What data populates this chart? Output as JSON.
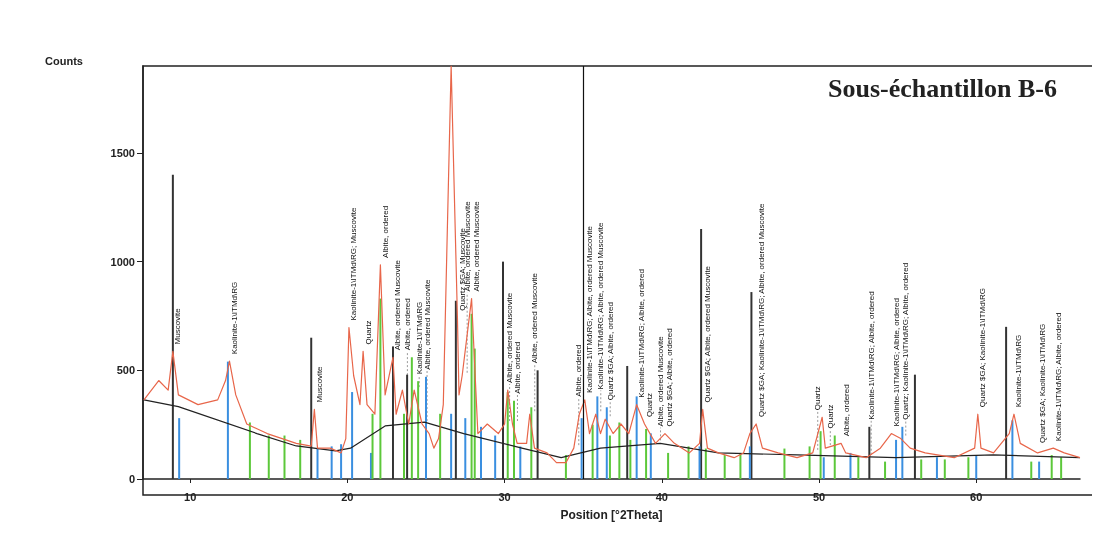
{
  "chart_data": {
    "type": "line",
    "title": "Sous-échantillon B-6",
    "xlabel": "Position [°2Theta]",
    "ylabel": "Counts",
    "xlim": [
      7,
      66.6
    ],
    "ylim": [
      0,
      1900
    ],
    "xticks": [
      10,
      20,
      30,
      40,
      50,
      60
    ],
    "yticks": [
      0,
      500,
      1000,
      1500
    ],
    "grid": false,
    "marker": "none",
    "line_style": "solid",
    "series": [
      {
        "color": "#e8664a",
        "x": [
          7.06,
          8.0,
          8.6,
          8.9,
          9.25,
          10.5,
          11.75,
          12.25,
          12.5,
          12.9,
          13.6,
          14.9,
          16.75,
          17.7,
          17.9,
          18.1,
          18.9,
          19.6,
          19.9,
          20.1,
          20.4,
          20.8,
          21.0,
          21.25,
          21.75,
          22.1,
          22.4,
          22.9,
          23.1,
          23.5,
          23.9,
          24.25,
          24.75,
          25.2,
          25.5,
          25.8,
          26.1,
          26.6,
          27.0,
          27.1,
          27.3,
          27.9,
          28.3,
          28.9,
          29.6,
          30.0,
          30.2,
          30.5,
          30.8,
          31.4,
          31.6,
          31.9,
          32.7,
          33.3,
          33.9,
          34.4,
          34.75,
          35.1,
          35.4,
          35.8,
          36.1,
          36.4,
          36.9,
          37.4,
          37.9,
          38.4,
          38.9,
          39.6,
          40.2,
          40.8,
          41.75,
          42.4,
          42.6,
          42.9,
          43.6,
          44.6,
          45.2,
          45.6,
          46.0,
          46.4,
          47.4,
          48.6,
          49.6,
          50.2,
          50.4,
          51.4,
          51.7,
          53.0,
          53.9,
          54.6,
          55.2,
          55.8,
          56.75,
          58.6,
          59.9,
          60.1,
          60.3,
          61.1,
          62.1,
          62.4,
          62.8,
          63.9,
          64.9,
          65.6,
          66.6
        ],
        "values": [
          364,
          453,
          409,
          587,
          387,
          342,
          364,
          453,
          542,
          387,
          253,
          209,
          164,
          151,
          320,
          142,
          142,
          120,
          186,
          697,
          475,
          342,
          587,
          342,
          298,
          985,
          387,
          560,
          298,
          409,
          253,
          409,
          253,
          209,
          142,
          186,
          342,
          1900,
          742,
          387,
          475,
          830,
          209,
          253,
          209,
          253,
          409,
          253,
          164,
          164,
          298,
          142,
          120,
          75,
          75,
          142,
          298,
          364,
          209,
          298,
          209,
          275,
          209,
          253,
          209,
          342,
          253,
          164,
          209,
          164,
          120,
          164,
          320,
          142,
          120,
          98,
          120,
          209,
          253,
          142,
          120,
          98,
          120,
          284,
          142,
          164,
          120,
          98,
          142,
          209,
          186,
          142,
          120,
          98,
          142,
          298,
          142,
          120,
          209,
          298,
          164,
          120,
          142,
          120,
          98
        ]
      },
      {
        "type": "line",
        "color": "#222222",
        "x": [
          7.06,
          9.25,
          14.25,
          16.75,
          19.25,
          20.2,
          22.4,
          24.9,
          27.4,
          31.1,
          33.6,
          36.1,
          39.9,
          43.6,
          48.6,
          54.9,
          61.1,
          66.6
        ],
        "values": [
          364,
          333,
          209,
          152,
          129,
          142,
          244,
          262,
          209,
          142,
          98,
          142,
          164,
          120,
          111,
          98,
          111,
          98
        ]
      },
      {
        "type": "bar",
        "color": "#333333",
        "x": [
          8.9,
          17.7,
          22.9,
          23.8,
          26.9,
          29.9,
          32.1,
          37.8,
          42.5,
          45.7,
          53.2,
          56.1,
          61.9
        ],
        "values": [
          1400,
          650,
          610,
          480,
          820,
          1000,
          500,
          520,
          1150,
          860,
          240,
          480,
          700
        ]
      },
      {
        "type": "bar",
        "color": "#3a8fe0",
        "x": [
          9.3,
          12.4,
          18.1,
          19.0,
          19.6,
          20.3,
          21.5,
          25.0,
          26.6,
          27.5,
          28.5,
          29.4,
          31.0,
          34.9,
          35.9,
          36.5,
          38.4,
          39.3,
          42.4,
          45.6,
          50.3,
          52.0,
          54.9,
          55.3,
          57.5,
          60.0,
          62.3,
          64.0
        ],
        "values": [
          280,
          540,
          140,
          150,
          160,
          400,
          120,
          470,
          300,
          280,
          240,
          200,
          150,
          280,
          380,
          330,
          380,
          210,
          150,
          150,
          100,
          120,
          180,
          240,
          100,
          110,
          270,
          80
        ]
      },
      {
        "type": "bar",
        "color": "#5cc83a",
        "x": [
          13.8,
          15.0,
          16.0,
          17.0,
          21.6,
          22.1,
          23.6,
          24.1,
          24.5,
          25.9,
          27.9,
          28.1,
          30.2,
          30.6,
          31.7,
          33.9,
          35.6,
          36.7,
          37.3,
          38.0,
          39.0,
          40.4,
          41.7,
          42.8,
          44.0,
          45.0,
          47.8,
          49.4,
          50.1,
          51.0,
          52.5,
          54.2,
          56.5,
          58.0,
          59.5,
          63.5,
          64.8,
          65.4
        ],
        "values": [
          260,
          200,
          200,
          180,
          300,
          830,
          300,
          560,
          450,
          300,
          760,
          600,
          400,
          360,
          330,
          110,
          250,
          200,
          260,
          180,
          230,
          120,
          150,
          140,
          110,
          120,
          140,
          150,
          220,
          200,
          100,
          80,
          90,
          90,
          100,
          80,
          110,
          100
        ]
      }
    ],
    "ref_lines": [
      {
        "axis": "x",
        "value": 35,
        "color": "#111111"
      }
    ],
    "annotations": [
      {
        "text": "Muscovite",
        "x": 8.9,
        "y": 587
      },
      {
        "text": "Kaolinite-1\\ITMd\\RG",
        "x": 12.5,
        "y": 542
      },
      {
        "text": "Muscovite",
        "x": 17.9,
        "y": 320
      },
      {
        "text": "Kaolinite-1\\ITMd\\RG; Muscovite",
        "x": 20.1,
        "y": 697
      },
      {
        "text": "Quartz",
        "x": 21.0,
        "y": 587
      },
      {
        "text": "Albite, ordered",
        "x": 22.1,
        "y": 985
      },
      {
        "text": "Albite, ordered Muscovite",
        "x": 22.9,
        "y": 560
      },
      {
        "text": "Albite, ordered",
        "x": 23.5,
        "y": 409
      },
      {
        "text": "Kaolinite-1\\ITMd\\RG",
        "x": 24.25,
        "y": 409
      },
      {
        "text": "Albite, ordered Muscovite",
        "x": 24.75,
        "y": 253
      },
      {
        "text": "Quartz $GA; Muscovite",
        "x": 27.0,
        "y": 742
      },
      {
        "text": "Albite, ordered Muscovite",
        "x": 27.3,
        "y": 475
      },
      {
        "text": "Albite, ordered Muscovite",
        "x": 27.9,
        "y": 830
      },
      {
        "text": "Albite, ordered Muscovite",
        "x": 30.0,
        "y": 253
      },
      {
        "text": "Albite, ordered",
        "x": 30.5,
        "y": 253
      },
      {
        "text": "Albite, ordered Muscovite",
        "x": 31.6,
        "y": 298
      },
      {
        "text": "Albite, ordered",
        "x": 34.4,
        "y": 142
      },
      {
        "text": "Kaolinite-1\\ITMd\\RG; Albite, ordered Muscovite",
        "x": 35.1,
        "y": 364
      },
      {
        "text": "Kaolinite-1\\ITMd\\RG; Albite, ordered Muscovite",
        "x": 35.8,
        "y": 298
      },
      {
        "text": "Quartz $GA; Albite, ordered",
        "x": 36.4,
        "y": 275
      },
      {
        "text": "Kaolinite-1\\ITMd\\RG; Albite, ordered",
        "x": 38.4,
        "y": 342
      },
      {
        "text": "Quartz",
        "x": 38.9,
        "y": 253
      },
      {
        "text": "Albite, ordered Muscovite",
        "x": 39.6,
        "y": 164
      },
      {
        "text": "Quartz $GA; Albite, ordered",
        "x": 40.2,
        "y": 209
      },
      {
        "text": "Quartz $GA; Albite, ordered Muscovite",
        "x": 42.6,
        "y": 320
      },
      {
        "text": "Quartz $GA; Kaolinite-1\\ITMd\\RG; Albite, ordered Muscovite",
        "x": 46.0,
        "y": 253
      },
      {
        "text": "Quartz",
        "x": 49.6,
        "y": 120
      },
      {
        "text": "Quartz",
        "x": 50.4,
        "y": 142
      },
      {
        "text": "Albite, ordered",
        "x": 51.4,
        "y": 164
      },
      {
        "text": "Kaolinite-1\\ITMd\\RG; Albite, ordered",
        "x": 53.0,
        "y": 98
      },
      {
        "text": "Kaolinite-1\\ITMd\\RG; Albite, ordered",
        "x": 54.6,
        "y": 209
      },
      {
        "text": "Quartz; Kaolinite-1\\ITMd\\RG; Albite, ordered",
        "x": 55.2,
        "y": 186
      },
      {
        "text": "Quartz $GA; Kaolinite-1\\ITMd\\RG",
        "x": 60.1,
        "y": 298
      },
      {
        "text": "Kaolinite-1\\ITMd\\RG",
        "x": 62.4,
        "y": 298
      },
      {
        "text": "Quartz $GA; Kaolinite-1\\ITMd\\RG",
        "x": 63.9,
        "y": 120
      },
      {
        "text": "Kaolinite-1\\ITMd\\RG; Albite, ordered",
        "x": 64.9,
        "y": 142
      }
    ]
  }
}
